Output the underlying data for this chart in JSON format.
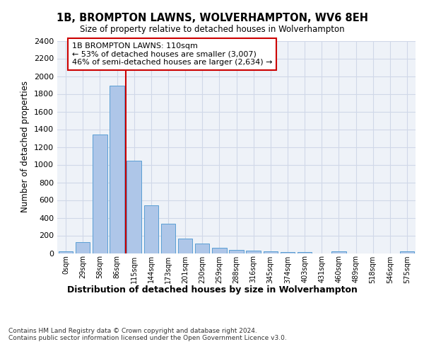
{
  "title_line1": "1B, BROMPTON LAWNS, WOLVERHAMPTON, WV6 8EH",
  "title_line2": "Size of property relative to detached houses in Wolverhampton",
  "xlabel": "Distribution of detached houses by size in Wolverhampton",
  "ylabel": "Number of detached properties",
  "footnote": "Contains HM Land Registry data © Crown copyright and database right 2024.\nContains public sector information licensed under the Open Government Licence v3.0.",
  "bar_labels": [
    "0sqm",
    "29sqm",
    "58sqm",
    "86sqm",
    "115sqm",
    "144sqm",
    "173sqm",
    "201sqm",
    "230sqm",
    "259sqm",
    "288sqm",
    "316sqm",
    "345sqm",
    "374sqm",
    "403sqm",
    "431sqm",
    "460sqm",
    "489sqm",
    "518sqm",
    "546sqm",
    "575sqm"
  ],
  "bar_values": [
    20,
    125,
    1340,
    1890,
    1045,
    540,
    335,
    165,
    110,
    62,
    38,
    30,
    22,
    15,
    12,
    0,
    18,
    0,
    0,
    0,
    18
  ],
  "bar_color": "#aec6e8",
  "bar_edge_color": "#5a9fd4",
  "grid_color": "#d0d8e8",
  "bg_color": "#eef2f8",
  "annotation_text": "1B BROMPTON LAWNS: 110sqm\n← 53% of detached houses are smaller (3,007)\n46% of semi-detached houses are larger (2,634) →",
  "annotation_box_color": "#ffffff",
  "annotation_box_edge": "#cc0000",
  "vline_x_idx": 3.5,
  "ylim_max": 2400,
  "yticks": [
    0,
    200,
    400,
    600,
    800,
    1000,
    1200,
    1400,
    1600,
    1800,
    2000,
    2200,
    2400
  ]
}
